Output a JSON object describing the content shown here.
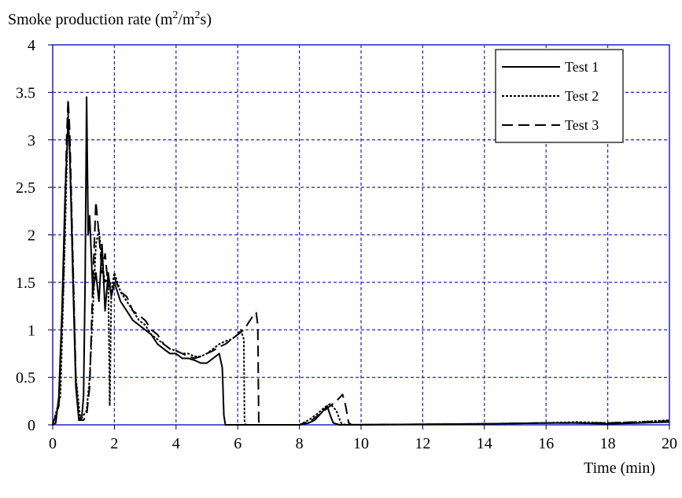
{
  "chart_data": {
    "type": "line",
    "title": "",
    "ylabel": "Smoke production rate (m²/m²s)",
    "ylabel_parts": {
      "pre": "Smoke production rate (m",
      "sup1": "2",
      "mid": "/m",
      "sup2": "2",
      "post": "s)"
    },
    "xlabel": "Time (min)",
    "xlim": [
      0,
      20
    ],
    "ylim": [
      0,
      4
    ],
    "x_ticks": [
      0,
      2,
      4,
      6,
      8,
      10,
      12,
      14,
      16,
      18,
      20
    ],
    "y_ticks": [
      0,
      0.5,
      1,
      1.5,
      2,
      2.5,
      3,
      3.5,
      4
    ],
    "y_tick_labels": [
      "0",
      "0.5",
      "1",
      "1.5",
      "2",
      "2.5",
      "3",
      "3.5",
      "4"
    ],
    "grid": true,
    "grid_color": "#2222cc",
    "legend_position": "top-right",
    "series": [
      {
        "name": "Test 1",
        "style": "solid",
        "color": "#000000",
        "points": [
          [
            0,
            0
          ],
          [
            0.1,
            0.02
          ],
          [
            0.2,
            0.3
          ],
          [
            0.3,
            1.2
          ],
          [
            0.4,
            2.4
          ],
          [
            0.5,
            3.2
          ],
          [
            0.55,
            2.9
          ],
          [
            0.65,
            1.6
          ],
          [
            0.75,
            0.4
          ],
          [
            0.85,
            0.05
          ],
          [
            0.95,
            0.1
          ],
          [
            1.0,
            0.3
          ],
          [
            1.05,
            1.5
          ],
          [
            1.1,
            3.45
          ],
          [
            1.15,
            2.0
          ],
          [
            1.2,
            2.2
          ],
          [
            1.3,
            1.4
          ],
          [
            1.4,
            1.6
          ],
          [
            1.5,
            1.3
          ],
          [
            1.6,
            1.9
          ],
          [
            1.7,
            1.2
          ],
          [
            1.8,
            1.6
          ],
          [
            1.9,
            1.35
          ],
          [
            2.0,
            1.5
          ],
          [
            2.2,
            1.3
          ],
          [
            2.4,
            1.2
          ],
          [
            2.6,
            1.1
          ],
          [
            2.8,
            1.05
          ],
          [
            3.0,
            1.0
          ],
          [
            3.2,
            0.95
          ],
          [
            3.4,
            0.85
          ],
          [
            3.6,
            0.8
          ],
          [
            3.8,
            0.75
          ],
          [
            4.0,
            0.75
          ],
          [
            4.2,
            0.7
          ],
          [
            4.4,
            0.7
          ],
          [
            4.6,
            0.68
          ],
          [
            4.8,
            0.65
          ],
          [
            5.0,
            0.65
          ],
          [
            5.2,
            0.7
          ],
          [
            5.4,
            0.75
          ],
          [
            5.5,
            0.6
          ],
          [
            5.55,
            0.1
          ],
          [
            5.6,
            0.0
          ],
          [
            8.0,
            0
          ],
          [
            8.3,
            0.02
          ],
          [
            8.5,
            0.05
          ],
          [
            8.7,
            0.12
          ],
          [
            8.9,
            0.2
          ],
          [
            9.0,
            0.1
          ],
          [
            9.1,
            0.02
          ],
          [
            9.3,
            0
          ],
          [
            14.0,
            0.01
          ],
          [
            16.0,
            0.02
          ],
          [
            17.0,
            0.02
          ],
          [
            18.0,
            0.01
          ],
          [
            19.0,
            0.02
          ],
          [
            20.0,
            0.03
          ]
        ]
      },
      {
        "name": "Test 2",
        "style": "dotted",
        "color": "#000000",
        "points": [
          [
            0,
            0
          ],
          [
            0.25,
            0.3
          ],
          [
            0.4,
            2.0
          ],
          [
            0.5,
            3.3
          ],
          [
            0.6,
            2.4
          ],
          [
            0.75,
            0.5
          ],
          [
            0.9,
            0.05
          ],
          [
            1.1,
            0.15
          ],
          [
            1.2,
            0.5
          ],
          [
            1.3,
            1.2
          ],
          [
            1.4,
            1.9
          ],
          [
            1.5,
            2.05
          ],
          [
            1.6,
            1.7
          ],
          [
            1.7,
            1.5
          ],
          [
            1.8,
            1.55
          ],
          [
            1.85,
            0.2
          ],
          [
            1.9,
            1.4
          ],
          [
            2.0,
            1.6
          ],
          [
            2.2,
            1.4
          ],
          [
            2.4,
            1.3
          ],
          [
            2.6,
            1.2
          ],
          [
            2.8,
            1.1
          ],
          [
            3.0,
            1.05
          ],
          [
            3.2,
            0.95
          ],
          [
            3.4,
            0.9
          ],
          [
            3.6,
            0.85
          ],
          [
            3.8,
            0.8
          ],
          [
            4.0,
            0.78
          ],
          [
            4.2,
            0.75
          ],
          [
            4.4,
            0.75
          ],
          [
            4.6,
            0.72
          ],
          [
            4.8,
            0.72
          ],
          [
            5.0,
            0.75
          ],
          [
            5.2,
            0.8
          ],
          [
            5.4,
            0.85
          ],
          [
            5.6,
            0.88
          ],
          [
            5.8,
            0.9
          ],
          [
            6.0,
            0.95
          ],
          [
            6.1,
            1.0
          ],
          [
            6.2,
            0.9
          ],
          [
            6.22,
            0.05
          ],
          [
            6.25,
            0
          ],
          [
            8.0,
            0
          ],
          [
            8.3,
            0.05
          ],
          [
            8.6,
            0.12
          ],
          [
            8.8,
            0.18
          ],
          [
            9.0,
            0.22
          ],
          [
            9.2,
            0.15
          ],
          [
            9.35,
            0.02
          ],
          [
            9.5,
            0
          ],
          [
            14.0,
            0.01
          ],
          [
            16.0,
            0.02
          ],
          [
            17.0,
            0.03
          ],
          [
            18.0,
            0.02
          ],
          [
            19.0,
            0.03
          ],
          [
            20.0,
            0.05
          ]
        ]
      },
      {
        "name": "Test 3",
        "style": "dashed",
        "color": "#000000",
        "points": [
          [
            0,
            0
          ],
          [
            0.2,
            0.2
          ],
          [
            0.35,
            1.5
          ],
          [
            0.45,
            3.0
          ],
          [
            0.5,
            3.43
          ],
          [
            0.55,
            3.1
          ],
          [
            0.65,
            1.8
          ],
          [
            0.75,
            0.5
          ],
          [
            0.85,
            0.05
          ],
          [
            1.0,
            0.05
          ],
          [
            1.1,
            0.1
          ],
          [
            1.2,
            0.4
          ],
          [
            1.3,
            1.5
          ],
          [
            1.4,
            2.35
          ],
          [
            1.5,
            2.0
          ],
          [
            1.6,
            1.6
          ],
          [
            1.7,
            1.8
          ],
          [
            1.8,
            1.45
          ],
          [
            2.0,
            1.55
          ],
          [
            2.2,
            1.4
          ],
          [
            2.4,
            1.35
          ],
          [
            2.6,
            1.2
          ],
          [
            2.8,
            1.15
          ],
          [
            3.0,
            1.1
          ],
          [
            3.2,
            1.0
          ],
          [
            3.4,
            0.95
          ],
          [
            3.6,
            0.85
          ],
          [
            3.8,
            0.8
          ],
          [
            4.0,
            0.78
          ],
          [
            4.2,
            0.75
          ],
          [
            4.4,
            0.72
          ],
          [
            4.6,
            0.7
          ],
          [
            4.8,
            0.72
          ],
          [
            5.0,
            0.75
          ],
          [
            5.2,
            0.78
          ],
          [
            5.4,
            0.82
          ],
          [
            5.6,
            0.85
          ],
          [
            5.8,
            0.9
          ],
          [
            6.0,
            0.95
          ],
          [
            6.2,
            1.0
          ],
          [
            6.4,
            1.1
          ],
          [
            6.5,
            1.15
          ],
          [
            6.6,
            1.18
          ],
          [
            6.65,
            1.05
          ],
          [
            6.68,
            0.05
          ],
          [
            6.7,
            0
          ],
          [
            8.0,
            0
          ],
          [
            8.4,
            0.05
          ],
          [
            8.7,
            0.12
          ],
          [
            9.0,
            0.2
          ],
          [
            9.2,
            0.25
          ],
          [
            9.4,
            0.32
          ],
          [
            9.5,
            0.2
          ],
          [
            9.6,
            0.02
          ],
          [
            9.7,
            0
          ],
          [
            14.0,
            0.01
          ],
          [
            16.0,
            0.02
          ],
          [
            17.0,
            0.02
          ],
          [
            18.0,
            0.02
          ],
          [
            19.0,
            0.03
          ],
          [
            20.0,
            0.04
          ]
        ]
      }
    ]
  }
}
